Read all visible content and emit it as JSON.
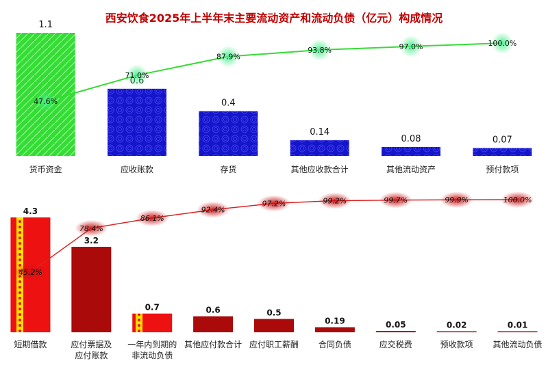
{
  "title": "西安饮食2025年上半年末主要流动资产和流动负债（亿元）构成情况",
  "chart_data": [
    {
      "type": "bar",
      "name": "流动资产",
      "categories": [
        "货币资金",
        "应收账款",
        "存货",
        "其他应收款合计",
        "其他流动资产",
        "预付款项"
      ],
      "values": [
        1.1,
        0.6,
        0.4,
        0.14,
        0.08,
        0.07
      ],
      "value_labels": [
        "1.1",
        "0.6",
        "0.4",
        "0.14",
        "0.08",
        "0.07"
      ],
      "cumulative_pct": [
        "47.6%",
        "71.0%",
        "87.9%",
        "93.8%",
        "97.0%",
        "100.0%"
      ],
      "cumulative_values": [
        47.6,
        71.0,
        87.9,
        93.8,
        97.0,
        100.0
      ],
      "colors": {
        "first_bar": "#33dd33",
        "bars": "#1515cc",
        "line": "#33dd33",
        "marker_glow": "#44ee88"
      }
    },
    {
      "type": "bar",
      "name": "流动负债",
      "categories": [
        "短期借款",
        "应付票据及\n应付账款",
        "一年内到期的\n非流动负债",
        "其他应付款合计",
        "应付职工薪酬",
        "合同负债",
        "应交税费",
        "预收款项",
        "其他流动负债"
      ],
      "values": [
        4.3,
        3.2,
        0.7,
        0.6,
        0.5,
        0.19,
        0.05,
        0.02,
        0.01
      ],
      "value_labels": [
        "4.3",
        "3.2",
        "0.7",
        "0.6",
        "0.5",
        "0.19",
        "0.05",
        "0.02",
        "0.01"
      ],
      "cumulative_pct": [
        "45.2%",
        "78.4%",
        "86.1%",
        "92.4%",
        "97.2%",
        "99.2%",
        "99.7%",
        "99.9%",
        "100.0%"
      ],
      "cumulative_values": [
        45.2,
        78.4,
        86.1,
        92.4,
        97.2,
        99.2,
        99.7,
        99.9,
        100.0
      ],
      "colors": {
        "highlight_bars": "#ee1111",
        "stripe": "#ffdd00",
        "bars": "#aa0a0a",
        "line": "#dd2222",
        "marker_glow": "#cc1111"
      }
    }
  ]
}
